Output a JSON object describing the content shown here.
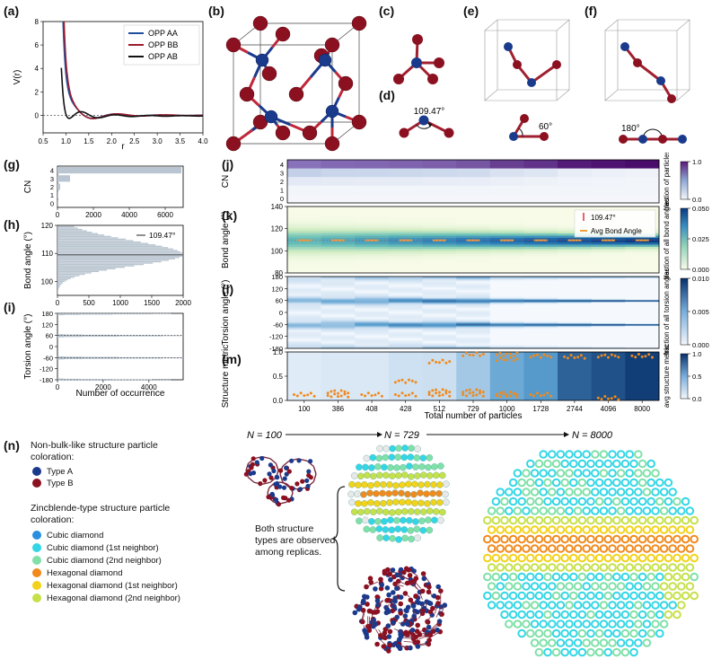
{
  "panel_labels": {
    "a": "(a)",
    "b": "(b)",
    "c": "(c)",
    "d": "(d)",
    "e": "(e)",
    "f": "(f)",
    "g": "(g)",
    "h": "(h)",
    "i": "(i)",
    "j": "(j)",
    "k": "(k)",
    "l": "(l)",
    "m": "(m)",
    "n": "(n)"
  },
  "angles": {
    "d": "109.47°",
    "e": "60°",
    "f": "180°"
  },
  "colors": {
    "type_a": "#1a3a8c",
    "type_b": "#8b1020",
    "bar": "#b9c5d0"
  },
  "chart_data": [
    {
      "id": "a",
      "type": "line",
      "xlabel": "r",
      "ylabel": "V(r)",
      "xlim": [
        0.5,
        4.0
      ],
      "ylim": [
        -1.5,
        8
      ],
      "xticks": [
        "0.5",
        "1.0",
        "1.5",
        "2.0",
        "2.5",
        "3.0",
        "3.5",
        "4.0"
      ],
      "yticks": [
        "-2",
        "0",
        "2",
        "4",
        "6",
        "8"
      ],
      "series": [
        {
          "name": "OPP AA",
          "color": "#1f4e9c"
        },
        {
          "name": "OPP BB",
          "color": "#9b1c2e"
        },
        {
          "name": "OPP AB",
          "color": "#111111"
        }
      ]
    },
    {
      "id": "g",
      "type": "bar",
      "ylabel": "CN",
      "categories": [
        "0",
        "1",
        "2",
        "3",
        "4"
      ],
      "values": [
        20,
        50,
        150,
        700,
        6900
      ],
      "xticks": [
        "0",
        "2000",
        "4000",
        "6000"
      ],
      "xlim": [
        0,
        7000
      ],
      "yticks": [
        "4",
        "3",
        "2",
        "1",
        "0"
      ]
    },
    {
      "id": "h",
      "type": "bar",
      "ylabel": "Bond angle (°)",
      "legend": "109.47°",
      "reference_value": 109.47,
      "ylim": [
        95,
        120
      ],
      "xlim": [
        0,
        2000
      ],
      "yticks": [
        "120",
        "110",
        "100"
      ],
      "xticks": [
        "0",
        "500",
        "1000",
        "1500",
        "2000"
      ]
    },
    {
      "id": "i",
      "type": "bar",
      "ylabel": "Torsion angle (°)",
      "xlabel": "Number of occurrence",
      "ylim": [
        -180,
        180
      ],
      "xlim": [
        0,
        5500
      ],
      "yticks": [
        "180",
        "120",
        "60",
        "0",
        "-60",
        "-120",
        "-180"
      ],
      "xticks": [
        "0",
        "2000",
        "4000"
      ],
      "peaks": [
        -180,
        -60,
        60,
        180
      ]
    },
    {
      "id": "j",
      "type": "heatmap",
      "ylabel": "CN",
      "yticks": [
        "4",
        "3",
        "2",
        "1",
        "0"
      ],
      "colorbar_label": "fraction of particles",
      "colorbar_ticks": [
        "1.0",
        "0.0"
      ],
      "cn4_fraction": [
        0.6,
        0.63,
        0.64,
        0.65,
        0.67,
        0.7,
        0.78,
        0.82,
        0.9,
        0.93,
        0.96
      ]
    },
    {
      "id": "k",
      "type": "heatmap",
      "ylabel": "Bond angle (°)",
      "yticks": [
        "140",
        "120",
        "100",
        "80"
      ],
      "legend": [
        "109.47°",
        "Avg Bond Angle"
      ],
      "colorbar_label": "fraction of all bond angles",
      "colorbar_ticks": [
        "0.050",
        "0.025",
        "0.000"
      ]
    },
    {
      "id": "l",
      "type": "heatmap",
      "ylabel": "Torsion angle (°)",
      "yticks": [
        "180",
        "120",
        "60",
        "0",
        "-60",
        "-120",
        "-180"
      ],
      "colorbar_label": "fraction of all torsion angles",
      "colorbar_ticks": [
        "0.010",
        "0.005",
        "0.000"
      ]
    },
    {
      "id": "m",
      "type": "scatter",
      "ylabel": "Structure metric",
      "xlabel": "Total number of particles",
      "yticks": [
        "1.0",
        "0.5",
        "0.0"
      ],
      "ylim": [
        0,
        1
      ],
      "categories": [
        "100",
        "386",
        "408",
        "428",
        "512",
        "729",
        "1000",
        "1728",
        "2744",
        "4096",
        "8000"
      ],
      "avg_metric": [
        0.15,
        0.18,
        0.18,
        0.26,
        0.28,
        0.4,
        0.55,
        0.62,
        0.82,
        0.88,
        0.95
      ],
      "clusters": [
        [
          0.12
        ],
        [
          0.1,
          0.18
        ],
        [
          0.12
        ],
        [
          0.12,
          0.4
        ],
        [
          0.12,
          0.2,
          0.8
        ],
        [
          0.12,
          0.2,
          0.95
        ],
        [
          0.1,
          0.15,
          0.85,
          0.95
        ],
        [
          0.12,
          0.92
        ],
        [
          0.9
        ],
        [
          0.05,
          0.92
        ],
        [
          0.92
        ]
      ],
      "colorbar_label": "avg structure metric",
      "colorbar_ticks": [
        "1.0",
        "0.5",
        "0.0"
      ]
    }
  ],
  "panel_n": {
    "nonbulk_title": "Non-bulk-like structure particle coloration:",
    "types": [
      {
        "label": "Type A",
        "color": "#1a3a8c"
      },
      {
        "label": "Type B",
        "color": "#8b1020"
      }
    ],
    "zincblende_title": "Zincblende-type structure particle coloration:",
    "zincblende_items": [
      {
        "label": "Cubic diamond",
        "color": "#2b8fe0"
      },
      {
        "label": "Cubic diamond (1st neighbor)",
        "color": "#33d6e6"
      },
      {
        "label": "Cubic diamond (2nd neighbor)",
        "color": "#7fe0a8"
      },
      {
        "label": "Hexagonal diamond",
        "color": "#f08a1c"
      },
      {
        "label": "Hexagonal diamond (1st neighbor)",
        "color": "#f2d21a"
      },
      {
        "label": "Hexagonal diamond (2nd neighbor)",
        "color": "#c6e04a"
      }
    ],
    "n_labels": [
      "N = 100",
      "N = 729",
      "N = 8000"
    ],
    "replica_note": "Both structure types are observed among replicas."
  }
}
